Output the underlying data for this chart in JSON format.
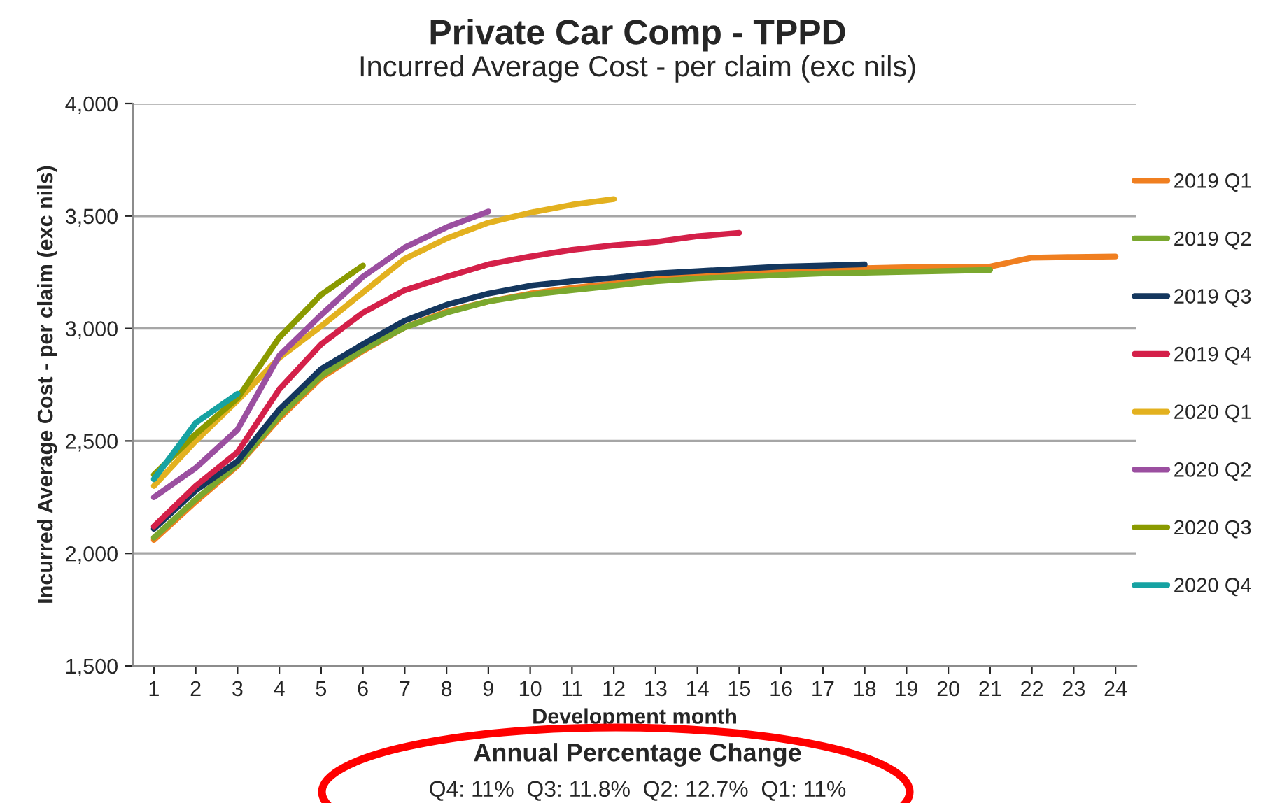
{
  "chart_data": {
    "type": "line",
    "title": "Private Car Comp - TPPD",
    "subtitle": "Incurred Average Cost - per claim (exc nils)",
    "xlabel": "Development month",
    "ylabel": "Incurred Average Cost - per claim (exc nils)",
    "categories": [
      "1",
      "2",
      "3",
      "4",
      "5",
      "6",
      "7",
      "8",
      "9",
      "10",
      "11",
      "12",
      "13",
      "14",
      "15",
      "16",
      "17",
      "18",
      "19",
      "20",
      "21",
      "22",
      "23",
      "24"
    ],
    "series": [
      {
        "name": "2019 Q1",
        "color": "#f07f20",
        "values": [
          2060,
          2230,
          2390,
          2600,
          2780,
          2900,
          3005,
          3075,
          3120,
          3155,
          3180,
          3200,
          3220,
          3235,
          3245,
          3255,
          3262,
          3268,
          3272,
          3275,
          3275,
          3315,
          3318,
          3320
        ]
      },
      {
        "name": "2019 Q2",
        "color": "#7aa82e",
        "values": [
          2070,
          2240,
          2395,
          2610,
          2790,
          2905,
          3005,
          3070,
          3120,
          3150,
          3170,
          3190,
          3210,
          3222,
          3230,
          3238,
          3245,
          3248,
          3252,
          3256,
          3260,
          null,
          null,
          null
        ]
      },
      {
        "name": "2019 Q3",
        "color": "#14375e",
        "values": [
          2110,
          2280,
          2410,
          2640,
          2820,
          2930,
          3035,
          3105,
          3155,
          3190,
          3210,
          3225,
          3245,
          3255,
          3265,
          3275,
          3280,
          3285,
          null,
          null,
          null,
          null,
          null,
          null
        ]
      },
      {
        "name": "2019 Q4",
        "color": "#d42049",
        "values": [
          2120,
          2300,
          2450,
          2730,
          2930,
          3070,
          3170,
          3230,
          3285,
          3320,
          3350,
          3370,
          3385,
          3410,
          3425,
          null,
          null,
          null,
          null,
          null,
          null,
          null,
          null,
          null
        ]
      },
      {
        "name": "2020 Q1",
        "color": "#e3b11f",
        "values": [
          2300,
          2500,
          2680,
          2870,
          3010,
          3160,
          3310,
          3400,
          3470,
          3515,
          3550,
          3575,
          null,
          null,
          null,
          null,
          null,
          null,
          null,
          null,
          null,
          null,
          null,
          null
        ]
      },
      {
        "name": "2020 Q2",
        "color": "#9b4fa0",
        "values": [
          2250,
          2380,
          2550,
          2880,
          3060,
          3230,
          3360,
          3450,
          3520,
          null,
          null,
          null,
          null,
          null,
          null,
          null,
          null,
          null,
          null,
          null,
          null,
          null,
          null,
          null
        ]
      },
      {
        "name": "2020 Q3",
        "color": "#8a9a00",
        "values": [
          2350,
          2530,
          2690,
          2960,
          3150,
          3280,
          null,
          null,
          null,
          null,
          null,
          null,
          null,
          null,
          null,
          null,
          null,
          null,
          null,
          null,
          null,
          null,
          null,
          null
        ]
      },
      {
        "name": "2020 Q4",
        "color": "#16a2a2",
        "values": [
          2330,
          2580,
          2710,
          null,
          null,
          null,
          null,
          null,
          null,
          null,
          null,
          null,
          null,
          null,
          null,
          null,
          null,
          null,
          null,
          null,
          null,
          null,
          null,
          null
        ]
      }
    ],
    "ylim": [
      1500,
      4000
    ],
    "yticks": [
      {
        "value": 1500,
        "label": "1,500"
      },
      {
        "value": 2000,
        "label": "2,000"
      },
      {
        "value": 2500,
        "label": "2,500"
      },
      {
        "value": 3000,
        "label": "3,000"
      },
      {
        "value": 3500,
        "label": "3,500"
      },
      {
        "value": 4000,
        "label": "4,000"
      }
    ],
    "grid": "y",
    "legend": "right",
    "marker": "none",
    "line_style": "solid",
    "annotations": [
      "Annual Percentage Change",
      "Q4: 11%  Q3: 11.8%  Q2: 12.7%  Q1: 11%"
    ]
  }
}
